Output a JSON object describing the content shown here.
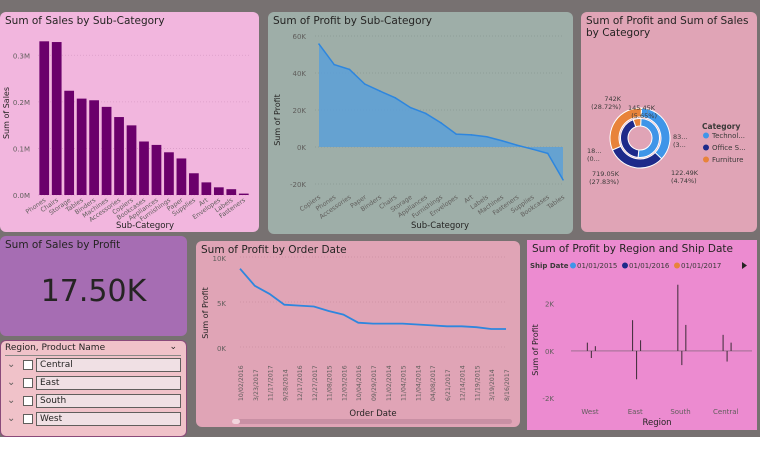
{
  "app": {
    "name": "Power BI report"
  },
  "colors": {
    "background": "#777171",
    "dark_purple": "#6b006b",
    "blue": "#4a9ede",
    "navy": "#1e2a8a",
    "orange": "#e8833a",
    "cyan": "#3f95e8"
  },
  "card_sales_subcat": {
    "title": "Sum of Sales by Sub-Category",
    "ylabel": "Sum of Sales",
    "xlabel": "Sub-Category",
    "yticks": [
      "0.3M",
      "0.2M",
      "0.1M",
      "0.0M"
    ],
    "categories": [
      "Phones",
      "Chairs",
      "Storage",
      "Tables",
      "Binders",
      "Machines",
      "Accessories",
      "Copiers",
      "Bookcases",
      "Appliances",
      "Furnishings",
      "Paper",
      "Supplies",
      "Art",
      "Envelopes",
      "Labels",
      "Fasteners"
    ]
  },
  "card_profit_subcat": {
    "title": "Sum of Profit by Sub-Category",
    "ylabel": "Sum of Profit",
    "xlabel": "Sub-Category",
    "yticks": [
      "60K",
      "40K",
      "20K",
      "0K",
      "-20K"
    ],
    "categories": [
      "Copiers",
      "Phones",
      "Accessories",
      "Paper",
      "Binders",
      "Chairs",
      "Storage",
      "Appliances",
      "Furnishings",
      "Envelopes",
      "Art",
      "Labels",
      "Machines",
      "Fasteners",
      "Supplies",
      "Bookcases",
      "Tables"
    ]
  },
  "card_donut": {
    "title": "Sum of Profit and Sum of Sales by Category",
    "legend_title": "Category",
    "legend": [
      "Technol...",
      "Office S...",
      "Furniture"
    ],
    "labels": [
      "145.45K (5.65%)",
      "83... (3...",
      "122.49K (4.74%)",
      "719.05K (27.83%)",
      "18... (0...",
      "742K (28.72%)"
    ]
  },
  "kpi": {
    "title": "Sum of Sales by Profit",
    "value": "17.50K"
  },
  "slicer": {
    "header": "Region, Product Name",
    "items": [
      "Central",
      "East",
      "South",
      "West"
    ]
  },
  "card_profit_date": {
    "title": "Sum of Profit by Order Date",
    "ylabel": "Sum of Profit",
    "xlabel": "Order Date",
    "yticks": [
      "10K",
      "5K",
      "0K"
    ],
    "dates": [
      "10/02/2016",
      "3/23/2017",
      "11/17/2017",
      "9/28/2014",
      "12/17/2016",
      "12/27/2017",
      "11/08/2015",
      "12/03/2016",
      "10/04/2016",
      "09/29/2017",
      "11/02/2014",
      "11/04/2015",
      "11/04/2014",
      "04/08/2017",
      "6/21/2017",
      "12/14/2014",
      "11/19/2015",
      "3/19/2014",
      "8/16/2017"
    ]
  },
  "card_region": {
    "title": "Sum of Profit by Region and Ship Date",
    "legend_label": "Ship Date",
    "legend": [
      "01/01/2015",
      "01/01/2016",
      "01/01/2017"
    ],
    "ylabel": "Sum of Profit",
    "xlabel": "Region",
    "yticks": [
      "2K",
      "0K",
      "-2K"
    ],
    "regions": [
      "West",
      "East",
      "South",
      "Central"
    ]
  },
  "chart_data": [
    {
      "type": "bar",
      "title": "Sum of Sales by Sub-Category",
      "xlabel": "Sub-Category",
      "ylabel": "Sum of Sales",
      "categories": [
        "Phones",
        "Chairs",
        "Storage",
        "Tables",
        "Binders",
        "Machines",
        "Accessories",
        "Copiers",
        "Bookcases",
        "Appliances",
        "Furnishings",
        "Paper",
        "Supplies",
        "Art",
        "Envelopes",
        "Labels",
        "Fasteners"
      ],
      "values": [
        330007,
        328449,
        223844,
        206966,
        203413,
        189239,
        167380,
        149528,
        114880,
        107532,
        91705,
        78479,
        46674,
        27119,
        16476,
        12486,
        3024
      ],
      "ylim": [
        0,
        350000
      ]
    },
    {
      "type": "area",
      "title": "Sum of Profit by Sub-Category",
      "xlabel": "Sub-Category",
      "ylabel": "Sum of Profit",
      "categories": [
        "Copiers",
        "Phones",
        "Accessories",
        "Paper",
        "Binders",
        "Chairs",
        "Storage",
        "Appliances",
        "Furnishings",
        "Envelopes",
        "Art",
        "Labels",
        "Machines",
        "Fasteners",
        "Supplies",
        "Bookcases",
        "Tables"
      ],
      "values": [
        55618,
        44516,
        41937,
        34054,
        30222,
        26590,
        21279,
        18138,
        13059,
        6964,
        6528,
        5546,
        3385,
        950,
        -1189,
        -3473,
        -17725
      ],
      "ylim": [
        -20000,
        60000
      ]
    },
    {
      "type": "pie",
      "title": "Sum of Profit and Sum of Sales by Category",
      "categories": [
        "Technology",
        "Office Supplies",
        "Furniture"
      ],
      "series": [
        {
          "name": "Sum of Profit",
          "values": [
            145450,
            122490,
            18450
          ]
        },
        {
          "name": "Sum of Sales",
          "values": [
            836150,
            719050,
            742000
          ]
        }
      ]
    },
    {
      "type": "line",
      "title": "Sum of Profit by Order Date",
      "xlabel": "Order Date",
      "ylabel": "Sum of Profit",
      "x": [
        "10/02/2016",
        "3/23/2017",
        "11/17/2017",
        "9/28/2014",
        "12/17/2016",
        "12/27/2017",
        "11/08/2015",
        "12/03/2016",
        "10/04/2016",
        "09/29/2017",
        "11/02/2014",
        "11/04/2015",
        "11/04/2014",
        "04/08/2017",
        "6/21/2017",
        "12/14/2014",
        "11/19/2015",
        "3/19/2014",
        "8/16/2017"
      ],
      "values": [
        8700,
        6800,
        5900,
        4700,
        4600,
        4500,
        4000,
        3600,
        2700,
        2600,
        2600,
        2600,
        2500,
        2400,
        2300,
        2300,
        2200,
        2000,
        2000
      ],
      "ylim": [
        0,
        10000
      ]
    },
    {
      "type": "bar",
      "title": "Sum of Profit by Region and Ship Date",
      "xlabel": "Region",
      "ylabel": "Sum of Profit",
      "categories": [
        "West",
        "East",
        "South",
        "Central"
      ],
      "ylim": [
        -2500,
        3000
      ],
      "series": [
        {
          "name": "01/01/2015",
          "values": [
            350,
            1300,
            2800,
            680
          ]
        },
        {
          "name": "01/01/2016",
          "values": [
            -300,
            -1200,
            -600,
            -450
          ]
        },
        {
          "name": "01/01/2017",
          "values": [
            200,
            450,
            1100,
            350
          ]
        }
      ]
    }
  ]
}
